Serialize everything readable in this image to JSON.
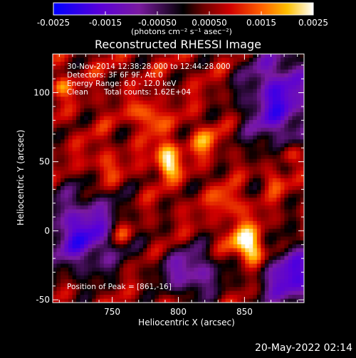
{
  "chart_data": {
    "type": "heatmap",
    "title": "Reconstructed RHESSI Image",
    "xlabel": "Heliocentric X (arcsec)",
    "ylabel": "Heliocentric Y (arcsec)",
    "xlim": [
      705,
      895
    ],
    "ylim": [
      -52,
      128
    ],
    "x_ticks": [
      750,
      800,
      850
    ],
    "x_tick_labels": [
      "750",
      "800",
      "850"
    ],
    "y_ticks": [
      0,
      50,
      100
    ],
    "y_tick_labels": [
      "0",
      "50",
      "100"
    ],
    "y_minor_extra_tick": -50,
    "y_minor_extra_label": "-50",
    "colorbar": {
      "min": -0.0025,
      "max": 0.0025,
      "ticks": [
        -0.0025,
        -0.0015,
        -0.0005,
        0.0005,
        0.0015,
        0.0025
      ],
      "tick_labels": [
        "-0.0025",
        "-0.0015",
        "-0.00050",
        "0.00050",
        "0.0015",
        "0.0025"
      ],
      "units_label": "(photons cm⁻² s⁻¹ asec⁻²)",
      "colors": [
        "#0000ff",
        "#5a00d8",
        "#7a1aa0",
        "#000000",
        "#700000",
        "#d00000",
        "#ff6000",
        "#ffc000",
        "#ffffff"
      ]
    },
    "annotations": {
      "time_range": "30-Nov-2014 12:38:28.000 to 12:44:28.000",
      "detectors": "Detectors: 3F 6F 9F, Att 0",
      "energy_range": "Energy Range: 6.0 - 12.0 keV",
      "method": "Clean",
      "total_counts": "Total counts: 1.62E+04",
      "peak_position": "Position of Peak = [861,-16]"
    },
    "grid": false
  },
  "footer": {
    "date": "20-May-2022 02:14"
  }
}
